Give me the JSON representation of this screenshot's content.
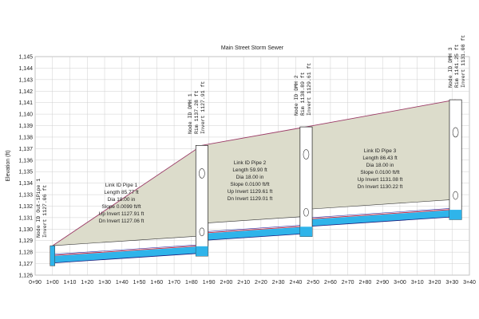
{
  "chart": {
    "title": "Main Street Storm Sewer",
    "ylabel": "Elevation (ft)",
    "y_ticks": [
      "1,126",
      "1,127",
      "1,128",
      "1,129",
      "1,130",
      "1,131",
      "1,132",
      "1,133",
      "1,134",
      "1,135",
      "1,136",
      "1,137",
      "1,138",
      "1,139",
      "1,140",
      "1,141",
      "1,142",
      "1,143",
      "1,144",
      "1,145"
    ],
    "x_ticks": [
      "0+90",
      "1+00",
      "1+10",
      "1+20",
      "1+30",
      "1+40",
      "1+50",
      "1+60",
      "1+70",
      "1+80",
      "1+90",
      "2+00",
      "2+10",
      "2+20",
      "2+30",
      "2+40",
      "2+50",
      "2+60",
      "2+70",
      "2+80",
      "2+90",
      "3+00",
      "3+10",
      "3+20",
      "3+30",
      "3+40"
    ],
    "colors": {
      "ground_fill": "#dcdccb",
      "ground_line": "#9b3a66",
      "water": "#2fb4ea",
      "pipe_outline": "#1a1a7a",
      "hgl": "#c8233a",
      "egl": "#2a2aa0",
      "manhole": "#ffffff",
      "grid": "#cfcfcf"
    }
  },
  "nodes": [
    {
      "lines": [
        "Node ID Out-1Pipe 1",
        "Invert 1127.06 ft"
      ]
    },
    {
      "lines": [
        "Node ID DMH 1",
        "Rim 1137.28 ft",
        "Invert 1127.91 ft"
      ]
    },
    {
      "lines": [
        "Node ID DMH 2",
        "Rim 1138.89 ft",
        "Invert 1129.61 ft"
      ]
    },
    {
      "lines": [
        "Node ID DMH 3",
        "Rim 1141.25 ft",
        "Invert 1131.08 ft"
      ]
    }
  ],
  "pipes": [
    {
      "lines": [
        "Link ID Pipe 1",
        "Length 85.77 ft",
        "Dia 18.00 in",
        "Slope 0.0099 ft/ft",
        "Up Invert 1127.91 ft",
        "Dn Invert 1127.06 ft"
      ]
    },
    {
      "lines": [
        "Link ID Pipe 2",
        "Length 59.90 ft",
        "Dia 18.00 in",
        "Slope 0.0100 ft/ft",
        "Up Invert 1129.61 ft",
        "Dn Invert 1129.01 ft"
      ]
    },
    {
      "lines": [
        "Link ID Pipe 3",
        "Length 86.43 ft",
        "Dia 18.00 in",
        "Slope 0.0100 ft/ft",
        "Up Invert 1131.08 ft",
        "Dn Invert 1130.22 ft"
      ]
    }
  ],
  "chart_data": {
    "type": "profile",
    "title": "Main Street Storm Sewer",
    "ylabel": "Elevation (ft)",
    "xlabel": "",
    "ylim": [
      1126,
      1145
    ],
    "xlim": [
      "0+90",
      "3+40"
    ],
    "grid": true,
    "manholes": [
      {
        "name": "Out-1Pipe 1",
        "station": "1+00",
        "invert": 1127.06
      },
      {
        "name": "DMH 1",
        "station": "1+86",
        "rim": 1137.28,
        "invert": 1127.91
      },
      {
        "name": "DMH 2",
        "station": "2+46",
        "rim": 1138.89,
        "invert": 1129.61
      },
      {
        "name": "DMH 3",
        "station": "3+32",
        "rim": 1141.25,
        "invert": 1131.08
      }
    ],
    "pipes": [
      {
        "name": "Pipe 1",
        "length_ft": 85.77,
        "dia_in": 18.0,
        "slope": 0.0099,
        "up_invert": 1127.91,
        "dn_invert": 1127.06
      },
      {
        "name": "Pipe 2",
        "length_ft": 59.9,
        "dia_in": 18.0,
        "slope": 0.01,
        "up_invert": 1129.61,
        "dn_invert": 1129.01
      },
      {
        "name": "Pipe 3",
        "length_ft": 86.43,
        "dia_in": 18.0,
        "slope": 0.01,
        "up_invert": 1131.08,
        "dn_invert": 1130.22
      }
    ]
  }
}
